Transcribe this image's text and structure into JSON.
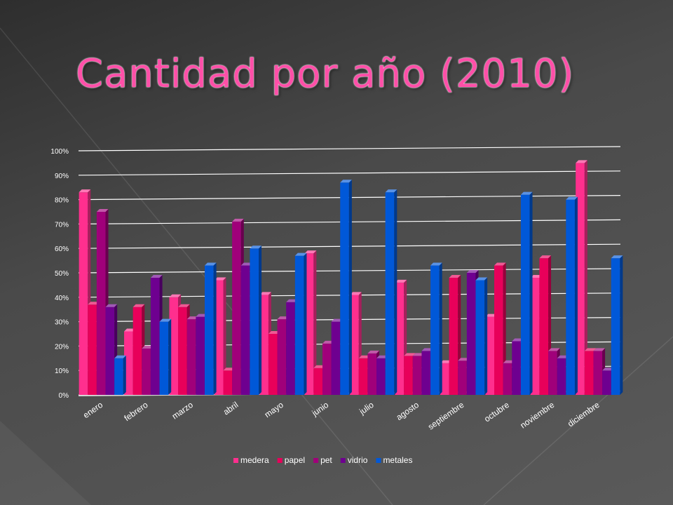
{
  "title": "Cantidad por año (2010)",
  "chart_data": {
    "type": "bar",
    "title": "",
    "xlabel": "",
    "ylabel": "",
    "ylim": [
      0,
      1
    ],
    "yticks": [
      "0%",
      "10%",
      "20%",
      "30%",
      "40%",
      "50%",
      "60%",
      "70%",
      "80%",
      "90%",
      "100%"
    ],
    "grid": true,
    "legend_position": "bottom",
    "categories": [
      "enero",
      "febrero",
      "marzo",
      "abril",
      "mayo",
      "junio",
      "julio",
      "agosto",
      "septiembre",
      "octubre",
      "noviembre",
      "diciembre"
    ],
    "series": [
      {
        "name": "medera",
        "color": "#ff2f8e",
        "values": [
          0.83,
          0.26,
          0.4,
          0.47,
          0.41,
          0.58,
          0.41,
          0.46,
          0.13,
          0.32,
          0.48,
          0.95
        ]
      },
      {
        "name": "papel",
        "color": "#e8005a",
        "values": [
          0.37,
          0.36,
          0.36,
          0.1,
          0.25,
          0.11,
          0.15,
          0.16,
          0.48,
          0.53,
          0.56,
          0.18
        ]
      },
      {
        "name": "pet",
        "color": "#a0007a",
        "values": [
          0.75,
          0.19,
          0.31,
          0.71,
          0.31,
          0.21,
          0.17,
          0.16,
          0.14,
          0.13,
          0.18,
          0.18
        ]
      },
      {
        "name": "vidrio",
        "color": "#6e0090",
        "values": [
          0.36,
          0.48,
          0.32,
          0.53,
          0.38,
          0.3,
          0.15,
          0.18,
          0.5,
          0.22,
          0.15,
          0.1
        ]
      },
      {
        "name": "metales",
        "color": "#0058d8",
        "values": [
          0.15,
          0.3,
          0.53,
          0.6,
          0.57,
          0.87,
          0.83,
          0.53,
          0.47,
          0.82,
          0.8,
          0.56
        ]
      }
    ]
  }
}
